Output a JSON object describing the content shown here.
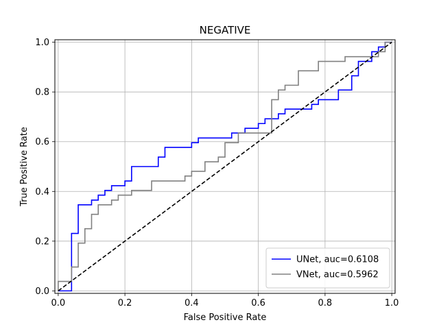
{
  "chart_data": {
    "type": "line",
    "title": "NEGATIVE",
    "xlabel": "False Positive Rate",
    "ylabel": "True Positive Rate",
    "xlim": [
      -0.01,
      1.01
    ],
    "ylim": [
      -0.01,
      1.01
    ],
    "xticks": [
      "0.0",
      "0.2",
      "0.4",
      "0.6",
      "0.8",
      "1.0"
    ],
    "yticks": [
      "0.0",
      "0.2",
      "0.4",
      "0.6",
      "0.8",
      "1.0"
    ],
    "grid": true,
    "legend_position": "lower-right",
    "series": [
      {
        "name": "UNet, auc=0.6108",
        "color": "#0000ff",
        "x": [
          0,
          0.04,
          0.04,
          0.06,
          0.06,
          0.1,
          0.1,
          0.12,
          0.12,
          0.14,
          0.14,
          0.16,
          0.16,
          0.2,
          0.2,
          0.22,
          0.22,
          0.3,
          0.3,
          0.32,
          0.32,
          0.4,
          0.4,
          0.42,
          0.42,
          0.52,
          0.52,
          0.56,
          0.56,
          0.6,
          0.6,
          0.62,
          0.62,
          0.66,
          0.66,
          0.68,
          0.68,
          0.76,
          0.76,
          0.78,
          0.78,
          0.84,
          0.84,
          0.88,
          0.88,
          0.9,
          0.9,
          0.94,
          0.94,
          0.96,
          0.96,
          0.98,
          0.98,
          1.0
        ],
        "y": [
          0,
          0,
          0.231,
          0.231,
          0.346,
          0.346,
          0.365,
          0.365,
          0.385,
          0.385,
          0.404,
          0.404,
          0.423,
          0.423,
          0.442,
          0.442,
          0.5,
          0.5,
          0.538,
          0.538,
          0.577,
          0.577,
          0.596,
          0.596,
          0.615,
          0.615,
          0.635,
          0.635,
          0.654,
          0.654,
          0.673,
          0.673,
          0.692,
          0.692,
          0.712,
          0.712,
          0.731,
          0.731,
          0.75,
          0.75,
          0.769,
          0.769,
          0.808,
          0.808,
          0.865,
          0.865,
          0.923,
          0.923,
          0.962,
          0.962,
          0.981,
          0.981,
          1.0,
          1.0
        ]
      },
      {
        "name": "VNet, auc=0.5962",
        "color": "#808080",
        "x": [
          0,
          0,
          0.04,
          0.04,
          0.06,
          0.06,
          0.08,
          0.08,
          0.1,
          0.1,
          0.12,
          0.12,
          0.16,
          0.16,
          0.18,
          0.18,
          0.22,
          0.22,
          0.28,
          0.28,
          0.38,
          0.38,
          0.4,
          0.4,
          0.44,
          0.44,
          0.48,
          0.48,
          0.5,
          0.5,
          0.54,
          0.54,
          0.64,
          0.64,
          0.66,
          0.66,
          0.68,
          0.68,
          0.72,
          0.72,
          0.78,
          0.78,
          0.86,
          0.86,
          0.96,
          0.96,
          0.98,
          0.98,
          1.0
        ],
        "y": [
          0,
          0.038,
          0.038,
          0.096,
          0.096,
          0.192,
          0.192,
          0.25,
          0.25,
          0.308,
          0.308,
          0.346,
          0.346,
          0.365,
          0.365,
          0.385,
          0.385,
          0.404,
          0.404,
          0.442,
          0.442,
          0.462,
          0.462,
          0.481,
          0.481,
          0.519,
          0.519,
          0.538,
          0.538,
          0.596,
          0.596,
          0.635,
          0.635,
          0.769,
          0.769,
          0.808,
          0.808,
          0.827,
          0.827,
          0.885,
          0.885,
          0.923,
          0.923,
          0.942,
          0.942,
          0.962,
          0.962,
          1.0,
          1.0
        ]
      },
      {
        "name": "",
        "color": "#000000",
        "dashed": true,
        "x": [
          0,
          1
        ],
        "y": [
          0,
          1
        ]
      }
    ]
  }
}
